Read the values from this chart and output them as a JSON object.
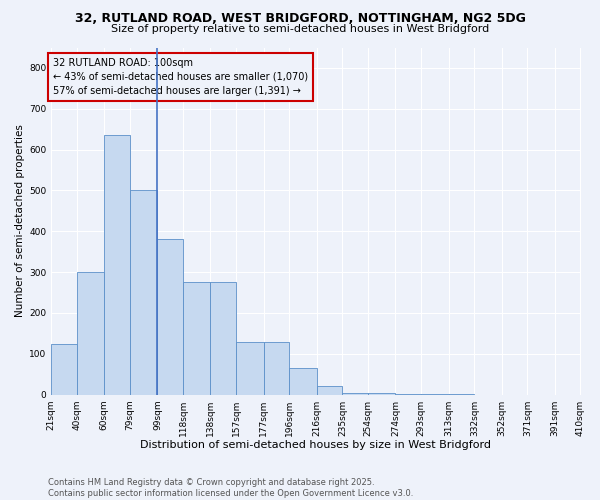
{
  "title": "32, RUTLAND ROAD, WEST BRIDGFORD, NOTTINGHAM, NG2 5DG",
  "subtitle": "Size of property relative to semi-detached houses in West Bridgford",
  "xlabel": "Distribution of semi-detached houses by size in West Bridgford",
  "ylabel": "Number of semi-detached properties",
  "footer_line1": "Contains HM Land Registry data © Crown copyright and database right 2025.",
  "footer_line2": "Contains public sector information licensed under the Open Government Licence v3.0.",
  "annotation_line1": "32 RUTLAND ROAD: 100sqm",
  "annotation_line2": "← 43% of semi-detached houses are smaller (1,070)",
  "annotation_line3": "57% of semi-detached houses are larger (1,391) →",
  "bin_edges": [
    21,
    40,
    60,
    79,
    99,
    118,
    138,
    157,
    177,
    196,
    216,
    235,
    254,
    274,
    293,
    313,
    332,
    352,
    371,
    391,
    410
  ],
  "bin_labels": [
    "21sqm",
    "40sqm",
    "60sqm",
    "79sqm",
    "99sqm",
    "118sqm",
    "138sqm",
    "157sqm",
    "177sqm",
    "196sqm",
    "216sqm",
    "235sqm",
    "254sqm",
    "274sqm",
    "293sqm",
    "313sqm",
    "332sqm",
    "352sqm",
    "371sqm",
    "391sqm",
    "410sqm"
  ],
  "bar_heights": [
    125,
    300,
    635,
    500,
    380,
    275,
    275,
    130,
    130,
    65,
    20,
    5,
    3,
    2,
    1,
    1,
    0,
    0,
    0,
    0
  ],
  "bar_color": "#c6d9f0",
  "bar_edge_color": "#5b8fc9",
  "highlight_line_color": "#4472c4",
  "annotation_box_edge_color": "#cc0000",
  "background_color": "#eef2fa",
  "ylim": [
    0,
    850
  ],
  "yticks": [
    0,
    100,
    200,
    300,
    400,
    500,
    600,
    700,
    800
  ],
  "grid_color": "#ffffff",
  "title_fontsize": 9,
  "subtitle_fontsize": 8,
  "xlabel_fontsize": 8,
  "ylabel_fontsize": 7.5,
  "tick_fontsize": 6.5,
  "annotation_fontsize": 7,
  "footer_fontsize": 6
}
